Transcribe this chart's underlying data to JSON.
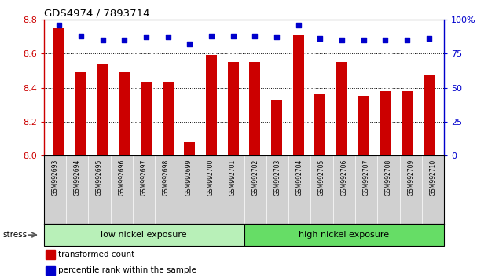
{
  "title": "GDS4974 / 7893714",
  "samples": [
    "GSM992693",
    "GSM992694",
    "GSM992695",
    "GSM992696",
    "GSM992697",
    "GSM992698",
    "GSM992699",
    "GSM992700",
    "GSM992701",
    "GSM992702",
    "GSM992703",
    "GSM992704",
    "GSM992705",
    "GSM992706",
    "GSM992707",
    "GSM992708",
    "GSM992709",
    "GSM992710"
  ],
  "bar_values": [
    8.75,
    8.49,
    8.54,
    8.49,
    8.43,
    8.43,
    8.08,
    8.59,
    8.55,
    8.55,
    8.33,
    8.71,
    8.36,
    8.55,
    8.35,
    8.38,
    8.38,
    8.47
  ],
  "percentile_values": [
    96,
    88,
    85,
    85,
    87,
    87,
    82,
    88,
    88,
    88,
    87,
    96,
    86,
    85,
    85,
    85,
    85,
    86
  ],
  "bar_color": "#cc0000",
  "dot_color": "#0000cc",
  "ylim_left": [
    8.0,
    8.8
  ],
  "ylim_right": [
    0,
    100
  ],
  "yticks_left": [
    8.0,
    8.2,
    8.4,
    8.6,
    8.8
  ],
  "yticks_right": [
    0,
    25,
    50,
    75,
    100
  ],
  "ytick_labels_right": [
    "0",
    "25",
    "50",
    "75",
    "100%"
  ],
  "grid_values": [
    8.2,
    8.4,
    8.6
  ],
  "low_nickel_count": 9,
  "high_nickel_count": 9,
  "group_labels": [
    "low nickel exposure",
    "high nickel exposure"
  ],
  "low_group_color": "#b8f0b8",
  "high_group_color": "#66dd66",
  "stress_label": "stress",
  "legend_items": [
    {
      "label": "transformed count",
      "color": "#cc0000"
    },
    {
      "label": "percentile rank within the sample",
      "color": "#0000cc"
    }
  ],
  "bar_color_left_axis": "#cc0000",
  "xtick_bg_color": "#d0d0d0",
  "bar_bottom": 8.0,
  "bar_width": 0.5
}
